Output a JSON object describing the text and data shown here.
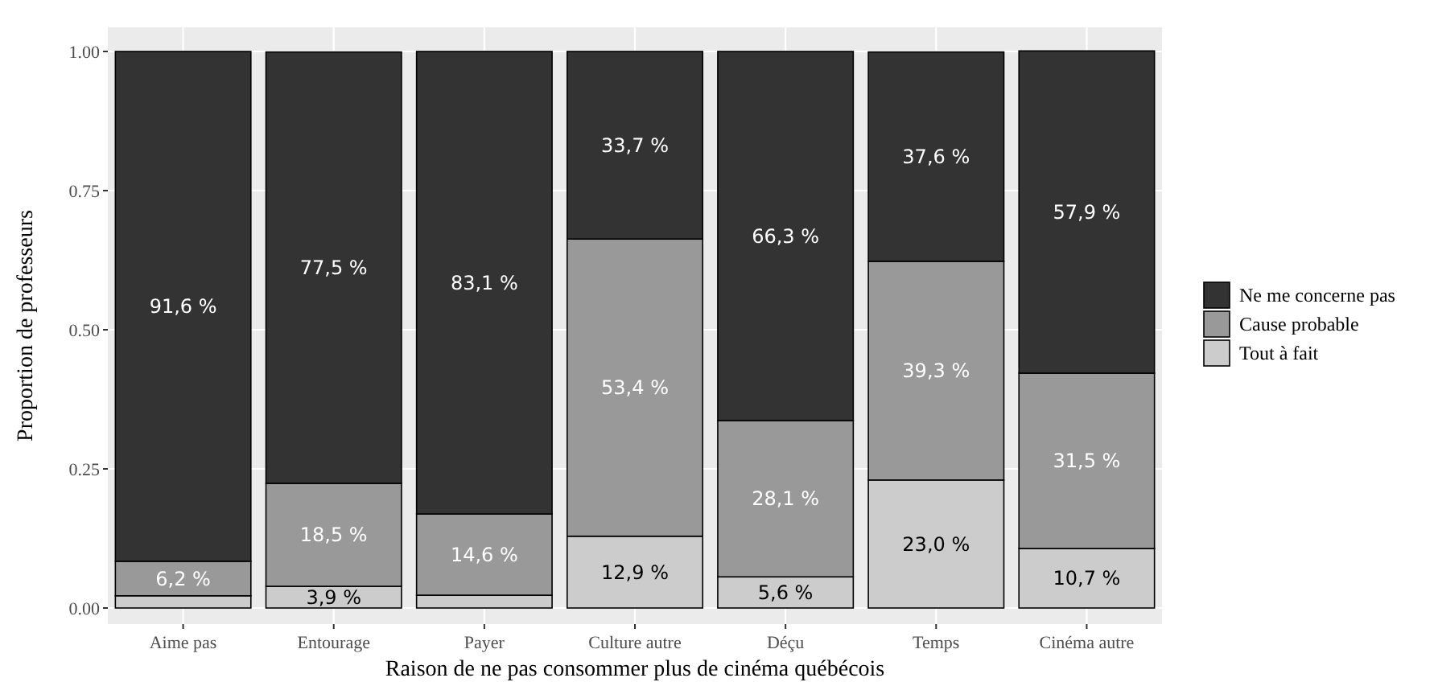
{
  "chart_data": {
    "type": "bar",
    "stacked": true,
    "xlabel": "Raison de ne pas consommer plus de cinéma québécois",
    "ylabel": "Proportion de professeurs",
    "categories": [
      "Aime pas",
      "Entourage",
      "Payer",
      "Culture autre",
      "Déçu",
      "Temps",
      "Cinéma autre"
    ],
    "series": [
      {
        "name": "Tout à fait",
        "color": "#cccccc",
        "values": [
          0.022,
          0.039,
          0.023,
          0.129,
          0.056,
          0.23,
          0.107
        ],
        "value_labels": [
          null,
          "3,9 %",
          null,
          "12,9 %",
          "5,6 %",
          "23,0 %",
          "10,7 %"
        ]
      },
      {
        "name": "Cause probable",
        "color": "#999999",
        "values": [
          0.062,
          0.185,
          0.146,
          0.534,
          0.281,
          0.393,
          0.315
        ],
        "value_labels": [
          "6,2 %",
          "18,5 %",
          "14,6 %",
          "53,4 %",
          "28,1 %",
          "39,3 %",
          "31,5 %"
        ]
      },
      {
        "name": "Ne me concerne pas",
        "color": "#333333",
        "values": [
          0.916,
          0.775,
          0.831,
          0.337,
          0.663,
          0.376,
          0.579
        ],
        "value_labels": [
          "91,6 %",
          "77,5 %",
          "83,1 %",
          "33,7 %",
          "66,3 %",
          "37,6 %",
          "57,9 %"
        ]
      }
    ],
    "ylim": [
      0,
      1
    ],
    "yticks": [
      {
        "value": 0,
        "label": "0.00"
      },
      {
        "value": 0.25,
        "label": "0.25"
      },
      {
        "value": 0.5,
        "label": "0.50"
      },
      {
        "value": 0.75,
        "label": "0.75"
      },
      {
        "value": 1,
        "label": "1.00"
      }
    ],
    "grid": true,
    "legend": "right"
  }
}
